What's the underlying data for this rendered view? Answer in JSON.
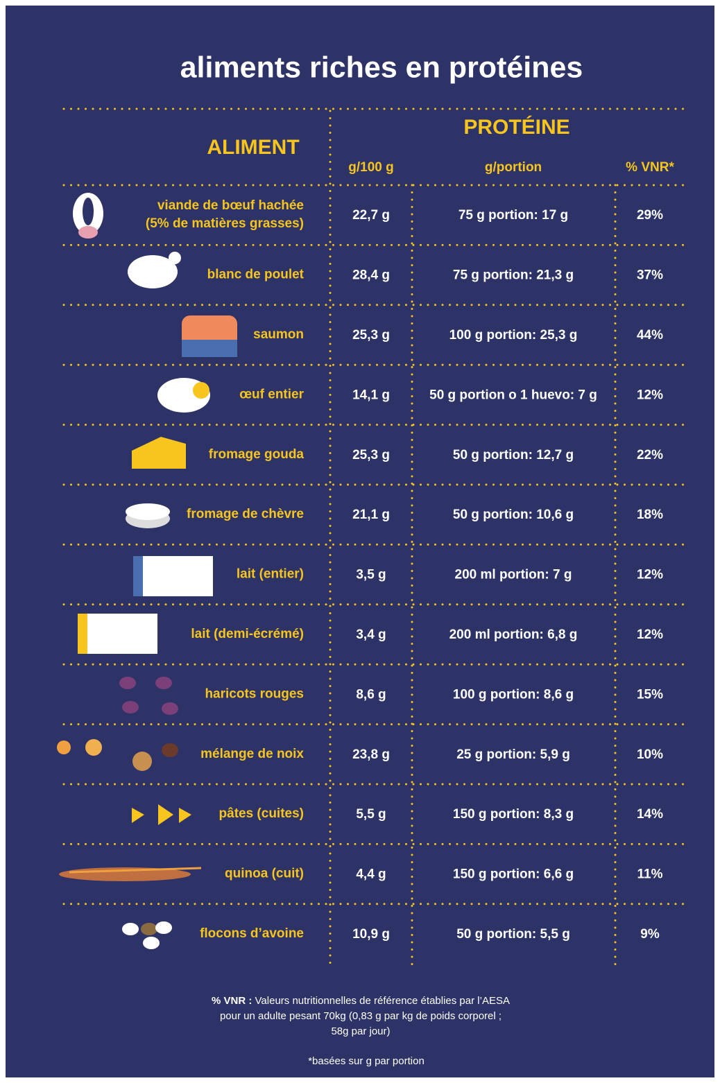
{
  "header": {
    "title": "aliments riches en protéines"
  },
  "table": {
    "columns": {
      "aliment": "ALIMENT",
      "proteine": "PROTÉINE",
      "sub": [
        "g/100 g",
        "g/portion",
        "% VNR*"
      ]
    },
    "rows": [
      {
        "aliment": [
          "viande de bœuf hachée",
          "(5% de matières grasses)"
        ],
        "cells": [
          "22,7 g",
          "75 g portion: 17 g",
          "29%"
        ]
      },
      {
        "aliment": [
          "blanc de poulet"
        ],
        "cells": [
          "28,4 g",
          "75 g portion: 21,3 g",
          "37%"
        ]
      },
      {
        "aliment": [
          "saumon"
        ],
        "cells": [
          "25,3 g",
          "100 g portion: 25,3 g",
          "44%"
        ]
      },
      {
        "aliment": [
          "œuf entier"
        ],
        "cells": [
          "14,1 g",
          "50 g portion o 1 huevo: 7 g",
          "12%"
        ]
      },
      {
        "aliment": [
          "fromage gouda"
        ],
        "cells": [
          "25,3 g",
          "50 g portion: 12,7 g",
          "22%"
        ]
      },
      {
        "aliment": [
          "fromage de chèvre"
        ],
        "cells": [
          "21,1 g",
          "50 g portion: 10,6 g",
          "18%"
        ]
      },
      {
        "aliment": [
          "lait (entier)"
        ],
        "cells": [
          "3,5 g",
          "200 ml portion: 7 g",
          "12%"
        ]
      },
      {
        "aliment": [
          "lait (demi-écrémé)"
        ],
        "cells": [
          "3,4 g",
          "200 ml portion: 6,8 g",
          "12%"
        ]
      },
      {
        "aliment": [
          "haricots rouges"
        ],
        "cells": [
          "8,6 g",
          "100 g portion: 8,6 g",
          "15%"
        ]
      },
      {
        "aliment": [
          "mélange de noix"
        ],
        "cells": [
          "23,8 g",
          "25 g portion: 5,9 g",
          "10%"
        ]
      },
      {
        "aliment": [
          "pâtes (cuites)"
        ],
        "cells": [
          "5,5 g",
          "150 g portion: 8,3 g",
          "14%"
        ]
      },
      {
        "aliment": [
          "quinoa (cuit)"
        ],
        "cells": [
          "4,4 g",
          "150 g portion: 6,6 g",
          "11%"
        ]
      },
      {
        "aliment": [
          "flocons d’avoine"
        ],
        "cells": [
          "10,9 g",
          "50 g portion: 5,5 g",
          "9%"
        ]
      }
    ]
  },
  "footnote": {
    "label": "% VNR :",
    "lines": [
      "Valeurs nutritionnelles de référence établies par l’AESA",
      "pour un adulte pesant 70kg (0,83 g par kg de poids corporel ;",
      "58g par jour)"
    ],
    "note": "*basées sur g par portion"
  }
}
